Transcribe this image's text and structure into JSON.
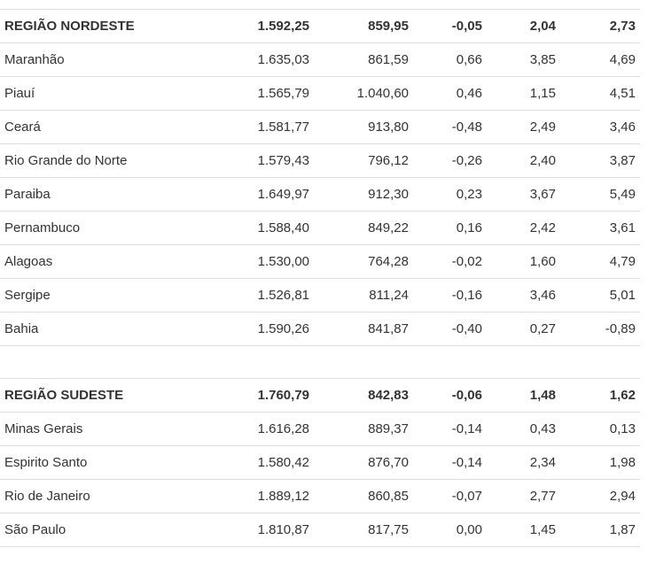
{
  "nordeste": {
    "region": {
      "name": "REGIÃO NORDESTE",
      "v1": "1.592,25",
      "v2": "859,95",
      "v3": "-0,05",
      "v4": "2,04",
      "v5": "2,73"
    },
    "rows": [
      {
        "name": "Maranhão",
        "v1": "1.635,03",
        "v2": "861,59",
        "v3": "0,66",
        "v4": "3,85",
        "v5": "4,69"
      },
      {
        "name": "Piauí",
        "v1": "1.565,79",
        "v2": "1.040,60",
        "v3": "0,46",
        "v4": "1,15",
        "v5": "4,51"
      },
      {
        "name": "Ceará",
        "v1": "1.581,77",
        "v2": "913,80",
        "v3": "-0,48",
        "v4": "2,49",
        "v5": "3,46"
      },
      {
        "name": "Rio Grande do Norte",
        "v1": "1.579,43",
        "v2": "796,12",
        "v3": "-0,26",
        "v4": "2,40",
        "v5": "3,87"
      },
      {
        "name": "Paraiba",
        "v1": "1.649,97",
        "v2": "912,30",
        "v3": "0,23",
        "v4": "3,67",
        "v5": "5,49"
      },
      {
        "name": "Pernambuco",
        "v1": "1.588,40",
        "v2": "849,22",
        "v3": "0,16",
        "v4": "2,42",
        "v5": "3,61"
      },
      {
        "name": "Alagoas",
        "v1": "1.530,00",
        "v2": "764,28",
        "v3": "-0,02",
        "v4": "1,60",
        "v5": "4,79"
      },
      {
        "name": "Sergipe",
        "v1": "1.526,81",
        "v2": "811,24",
        "v3": "-0,16",
        "v4": "3,46",
        "v5": "5,01"
      },
      {
        "name": "Bahia",
        "v1": "1.590,26",
        "v2": "841,87",
        "v3": "-0,40",
        "v4": "0,27",
        "v5": "-0,89"
      }
    ]
  },
  "sudeste": {
    "region": {
      "name": "REGIÃO SUDESTE",
      "v1": "1.760,79",
      "v2": "842,83",
      "v3": "-0,06",
      "v4": "1,48",
      "v5": "1,62"
    },
    "rows": [
      {
        "name": "Minas Gerais",
        "v1": "1.616,28",
        "v2": "889,37",
        "v3": "-0,14",
        "v4": "0,43",
        "v5": "0,13"
      },
      {
        "name": "Espirito Santo",
        "v1": "1.580,42",
        "v2": "876,70",
        "v3": "-0,14",
        "v4": "2,34",
        "v5": "1,98"
      },
      {
        "name": "Rio de Janeiro",
        "v1": "1.889,12",
        "v2": "860,85",
        "v3": "-0,07",
        "v4": "2,77",
        "v5": "2,94"
      },
      {
        "name": "São Paulo",
        "v1": "1.810,87",
        "v2": "817,75",
        "v3": "0,00",
        "v4": "1,45",
        "v5": "1,87"
      }
    ]
  }
}
